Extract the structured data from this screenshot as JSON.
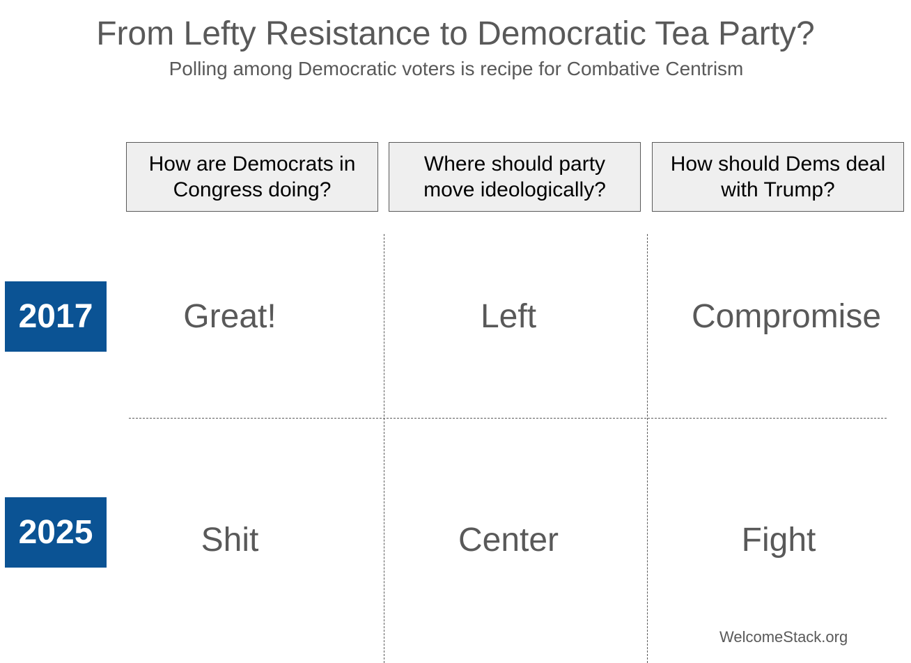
{
  "title": "From Lefty Resistance to Democratic Tea Party?",
  "subtitle": "Polling among Democratic voters is recipe for Combative Centrism",
  "questions": [
    "How are Democrats in Congress doing?",
    "Where should party move ideologically?",
    "How should Dems deal with Trump?"
  ],
  "rows": [
    {
      "year": "2017",
      "answers": [
        "Great!",
        "Left",
        "Compromise"
      ]
    },
    {
      "year": "2025",
      "answers": [
        "Shit",
        "Center",
        "Fight"
      ]
    }
  ],
  "source": "WelcomeStack.org",
  "colors": {
    "year_box": "#0b5394",
    "question_box": "#efefef",
    "text": "#595959"
  }
}
